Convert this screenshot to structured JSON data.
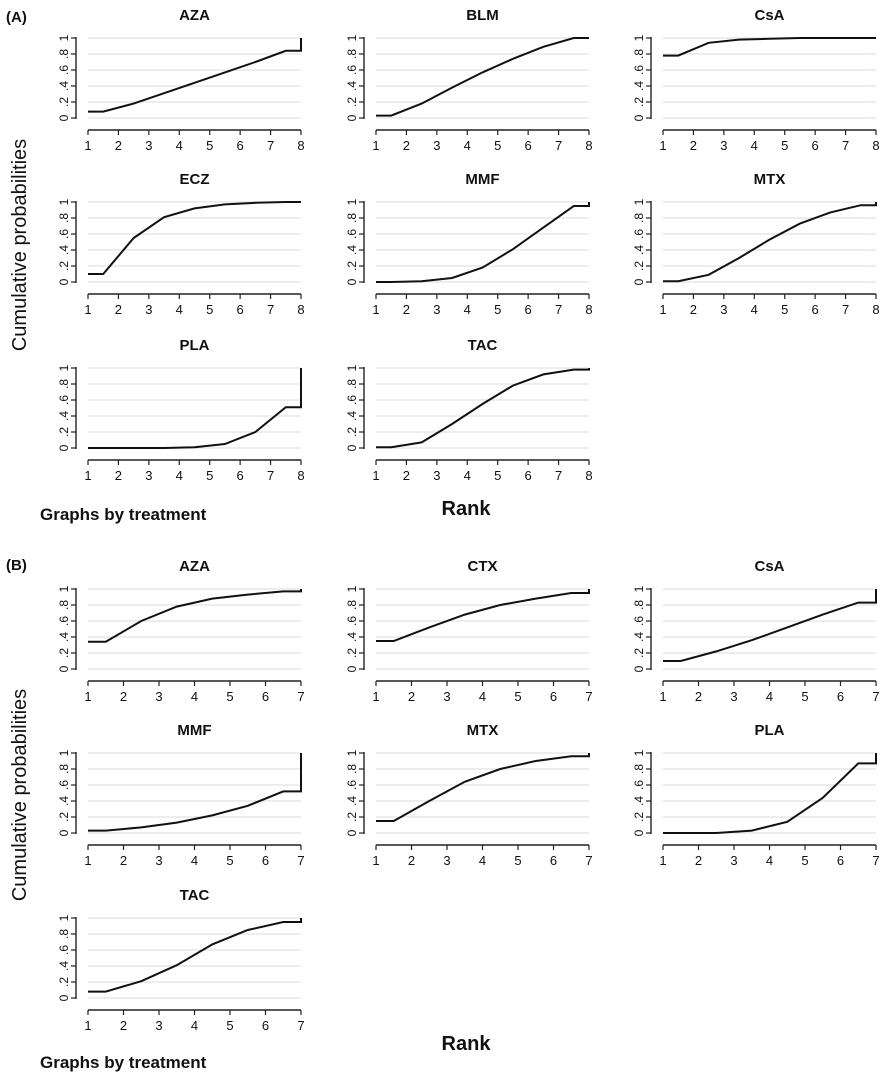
{
  "chart_data": [
    {
      "panel_label": "(A)",
      "type": "line",
      "ylabel": "Cumulative probabilities",
      "xlabel": "Rank",
      "note": "Graphs by treatment",
      "x": [
        1,
        2,
        3,
        4,
        5,
        6,
        7,
        8
      ],
      "ylim": [
        0,
        1
      ],
      "yticks": [
        "0",
        ".2",
        ".4",
        ".6",
        ".8",
        "1"
      ],
      "grid": true,
      "series": [
        {
          "name": "AZA",
          "values": [
            0.08,
            0.18,
            0.31,
            0.44,
            0.57,
            0.7,
            0.84,
            1.0
          ]
        },
        {
          "name": "BLM",
          "values": [
            0.03,
            0.18,
            0.38,
            0.57,
            0.74,
            0.89,
            1.0,
            1.0
          ]
        },
        {
          "name": "CsA",
          "values": [
            0.78,
            0.94,
            0.98,
            0.99,
            1.0,
            1.0,
            1.0,
            1.0
          ]
        },
        {
          "name": "ECZ",
          "values": [
            0.1,
            0.55,
            0.81,
            0.92,
            0.97,
            0.99,
            1.0,
            1.0
          ]
        },
        {
          "name": "MMF",
          "values": [
            0.0,
            0.01,
            0.05,
            0.18,
            0.41,
            0.68,
            0.95,
            1.0
          ]
        },
        {
          "name": "MTX",
          "values": [
            0.01,
            0.09,
            0.3,
            0.53,
            0.73,
            0.87,
            0.96,
            1.0
          ]
        },
        {
          "name": "PLA",
          "values": [
            0.0,
            0.0,
            0.0,
            0.01,
            0.05,
            0.2,
            0.51,
            1.0
          ]
        },
        {
          "name": "TAC",
          "values": [
            0.01,
            0.07,
            0.3,
            0.55,
            0.78,
            0.92,
            0.98,
            1.0
          ]
        }
      ]
    },
    {
      "panel_label": "(B)",
      "type": "line",
      "ylabel": "Cumulative probabilities",
      "xlabel": "Rank",
      "note": "Graphs by treatment",
      "x": [
        1,
        2,
        3,
        4,
        5,
        6,
        7
      ],
      "ylim": [
        0,
        1
      ],
      "yticks": [
        "0",
        ".2",
        ".4",
        ".6",
        ".8",
        "1"
      ],
      "grid": true,
      "series": [
        {
          "name": "AZA",
          "values": [
            0.34,
            0.6,
            0.78,
            0.88,
            0.93,
            0.97,
            1.0
          ]
        },
        {
          "name": "CTX",
          "values": [
            0.35,
            0.52,
            0.68,
            0.8,
            0.88,
            0.95,
            1.0
          ]
        },
        {
          "name": "CsA",
          "values": [
            0.1,
            0.22,
            0.36,
            0.52,
            0.68,
            0.83,
            1.0
          ]
        },
        {
          "name": "MMF",
          "values": [
            0.03,
            0.07,
            0.13,
            0.22,
            0.34,
            0.52,
            1.0
          ]
        },
        {
          "name": "MTX",
          "values": [
            0.15,
            0.4,
            0.64,
            0.8,
            0.9,
            0.96,
            1.0
          ]
        },
        {
          "name": "PLA",
          "values": [
            0.0,
            0.0,
            0.03,
            0.14,
            0.44,
            0.87,
            1.0
          ]
        },
        {
          "name": "TAC",
          "values": [
            0.08,
            0.21,
            0.41,
            0.67,
            0.85,
            0.95,
            1.0
          ]
        }
      ]
    }
  ]
}
